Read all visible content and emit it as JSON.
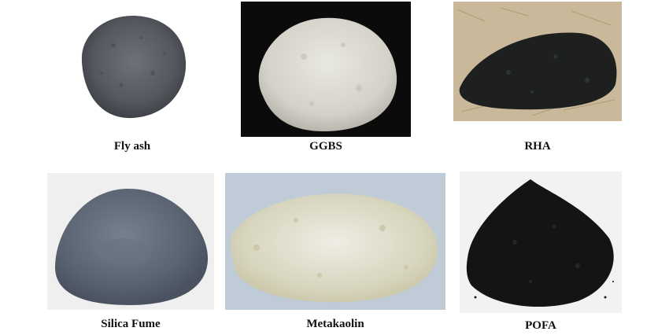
{
  "figure": {
    "captions": {
      "fly_ash": "Fly ash",
      "ggbs": "GGBS",
      "rha": "RHA",
      "silica_fume": "Silica Fume",
      "metakaolin": "Metakaolin",
      "pofa": "POFA"
    },
    "colors": {
      "fly_ash": "#5d6066",
      "ggbs": "#d9d7cf",
      "rha": "#1e2020",
      "silica_fume": "#5e6775",
      "metakaolin": "#d7d5bd",
      "pofa": "#141414"
    }
  }
}
